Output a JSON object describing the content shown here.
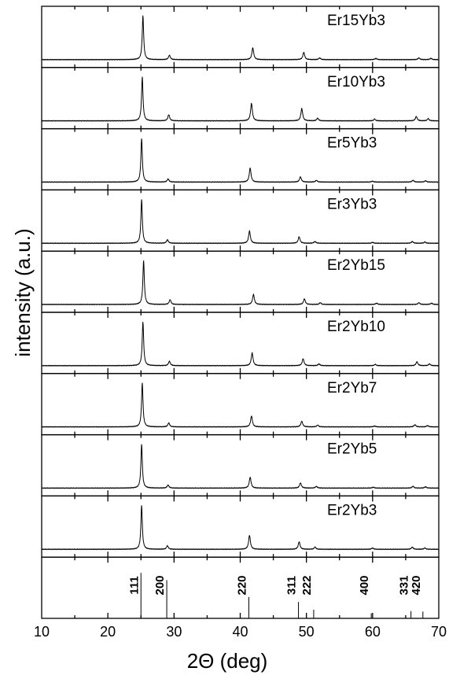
{
  "chart_data": {
    "type": "line",
    "xlabel": "2Θ (deg)",
    "ylabel": "intensity (a.u.)",
    "xlim": [
      10,
      70
    ],
    "x_ticks": [
      10,
      20,
      30,
      40,
      50,
      60,
      70
    ],
    "grid": false,
    "layout": "stacked panels, one per sample, shared x-axis",
    "series": [
      {
        "name": "Er15Yb3",
        "peaks": [
          [
            25.3,
            1.0
          ],
          [
            29.3,
            0.1
          ],
          [
            41.9,
            0.27
          ],
          [
            49.6,
            0.17
          ],
          [
            52.0,
            0.04
          ],
          [
            60.5,
            0.03
          ],
          [
            67.0,
            0.04
          ],
          [
            68.8,
            0.03
          ]
        ]
      },
      {
        "name": "Er10Yb3",
        "peaks": [
          [
            25.2,
            1.0
          ],
          [
            29.2,
            0.14
          ],
          [
            41.7,
            0.4
          ],
          [
            49.3,
            0.28
          ],
          [
            51.7,
            0.06
          ],
          [
            60.3,
            0.04
          ],
          [
            66.6,
            0.1
          ],
          [
            68.4,
            0.05
          ]
        ]
      },
      {
        "name": "Er5Yb3",
        "peaks": [
          [
            25.1,
            1.0
          ],
          [
            29.1,
            0.07
          ],
          [
            41.5,
            0.32
          ],
          [
            49.1,
            0.12
          ],
          [
            51.5,
            0.04
          ],
          [
            60.0,
            0.02
          ],
          [
            66.1,
            0.04
          ],
          [
            68.0,
            0.03
          ]
        ]
      },
      {
        "name": "Er3Yb3",
        "peaks": [
          [
            25.1,
            1.0
          ],
          [
            29.0,
            0.08
          ],
          [
            41.4,
            0.28
          ],
          [
            48.9,
            0.15
          ],
          [
            51.3,
            0.04
          ],
          [
            60.0,
            0.02
          ],
          [
            66.0,
            0.04
          ],
          [
            67.9,
            0.03
          ]
        ]
      },
      {
        "name": "Er2Yb15",
        "peaks": [
          [
            25.4,
            1.0
          ],
          [
            29.4,
            0.11
          ],
          [
            42.0,
            0.23
          ],
          [
            49.7,
            0.13
          ],
          [
            52.1,
            0.04
          ],
          [
            60.6,
            0.03
          ],
          [
            67.0,
            0.04
          ],
          [
            68.9,
            0.03
          ]
        ]
      },
      {
        "name": "Er2Yb10",
        "peaks": [
          [
            25.3,
            1.0
          ],
          [
            29.3,
            0.1
          ],
          [
            41.8,
            0.29
          ],
          [
            49.5,
            0.16
          ],
          [
            51.9,
            0.04
          ],
          [
            60.4,
            0.03
          ],
          [
            66.7,
            0.09
          ],
          [
            68.6,
            0.04
          ]
        ]
      },
      {
        "name": "Er2Yb7",
        "peaks": [
          [
            25.2,
            1.0
          ],
          [
            29.2,
            0.09
          ],
          [
            41.7,
            0.25
          ],
          [
            49.3,
            0.13
          ],
          [
            51.7,
            0.04
          ],
          [
            60.3,
            0.02
          ],
          [
            66.4,
            0.05
          ],
          [
            68.3,
            0.03
          ]
        ]
      },
      {
        "name": "Er2Yb5",
        "peaks": [
          [
            25.1,
            1.0
          ],
          [
            29.1,
            0.07
          ],
          [
            41.5,
            0.25
          ],
          [
            49.1,
            0.12
          ],
          [
            51.5,
            0.04
          ],
          [
            60.1,
            0.02
          ],
          [
            66.1,
            0.04
          ],
          [
            68.0,
            0.03
          ]
        ]
      },
      {
        "name": "Er2Yb3",
        "peaks": [
          [
            25.1,
            1.0
          ],
          [
            29.0,
            0.08
          ],
          [
            41.4,
            0.32
          ],
          [
            48.9,
            0.17
          ],
          [
            51.3,
            0.05
          ],
          [
            60.0,
            0.03
          ],
          [
            66.0,
            0.05
          ],
          [
            67.9,
            0.03
          ]
        ]
      }
    ],
    "reference_peaks": [
      {
        "hkl": "111",
        "x": 25.0,
        "intensity": 1.0
      },
      {
        "hkl": "200",
        "x": 28.9,
        "intensity": 0.84
      },
      {
        "hkl": "220",
        "x": 41.3,
        "intensity": 0.47
      },
      {
        "hkl": "311",
        "x": 48.8,
        "intensity": 0.36
      },
      {
        "hkl": "222",
        "x": 51.1,
        "intensity": 0.19
      },
      {
        "hkl": "400",
        "x": 59.8,
        "intensity": 0.11
      },
      {
        "hkl": "331",
        "x": 65.8,
        "intensity": 0.16
      },
      {
        "hkl": "420",
        "x": 67.6,
        "intensity": 0.15
      }
    ]
  }
}
